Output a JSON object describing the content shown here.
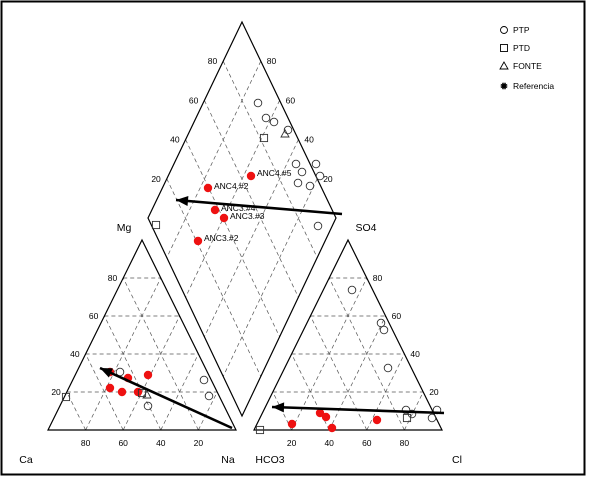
{
  "chart_data": {
    "type": "scatter",
    "subtype": "piper-diagram",
    "legend": [
      {
        "name": "PTP",
        "marker": "circle"
      },
      {
        "name": "PTD",
        "marker": "square"
      },
      {
        "name": "FONTE",
        "marker": "triangle"
      },
      {
        "name": "Referencia",
        "marker": "star"
      }
    ],
    "corner_labels": {
      "ca": "Ca",
      "na": "Na",
      "mg": "Mg",
      "hco3": "HCO3",
      "cl": "Cl",
      "so4": "SO4"
    },
    "cation_tick_labels": [
      "80",
      "60",
      "40",
      "20"
    ],
    "cation_mg_tick_labels": [
      "80",
      "60",
      "40",
      "20"
    ],
    "anion_tick_labels": [
      "20",
      "40",
      "60",
      "80"
    ],
    "anion_so4_tick_labels": [
      "80",
      "60",
      "40",
      "20"
    ],
    "diamond_tick_labels": [
      "80",
      "60",
      "40",
      "20"
    ],
    "annotations": [
      "ANC4.#2",
      "ANC4.#5",
      "ANC3.#4",
      "ANC3.#3",
      "ANC3.#2"
    ],
    "colors": {
      "referencia": "#ee1111",
      "open_marker": "#333333",
      "arrow": "#000000"
    }
  }
}
